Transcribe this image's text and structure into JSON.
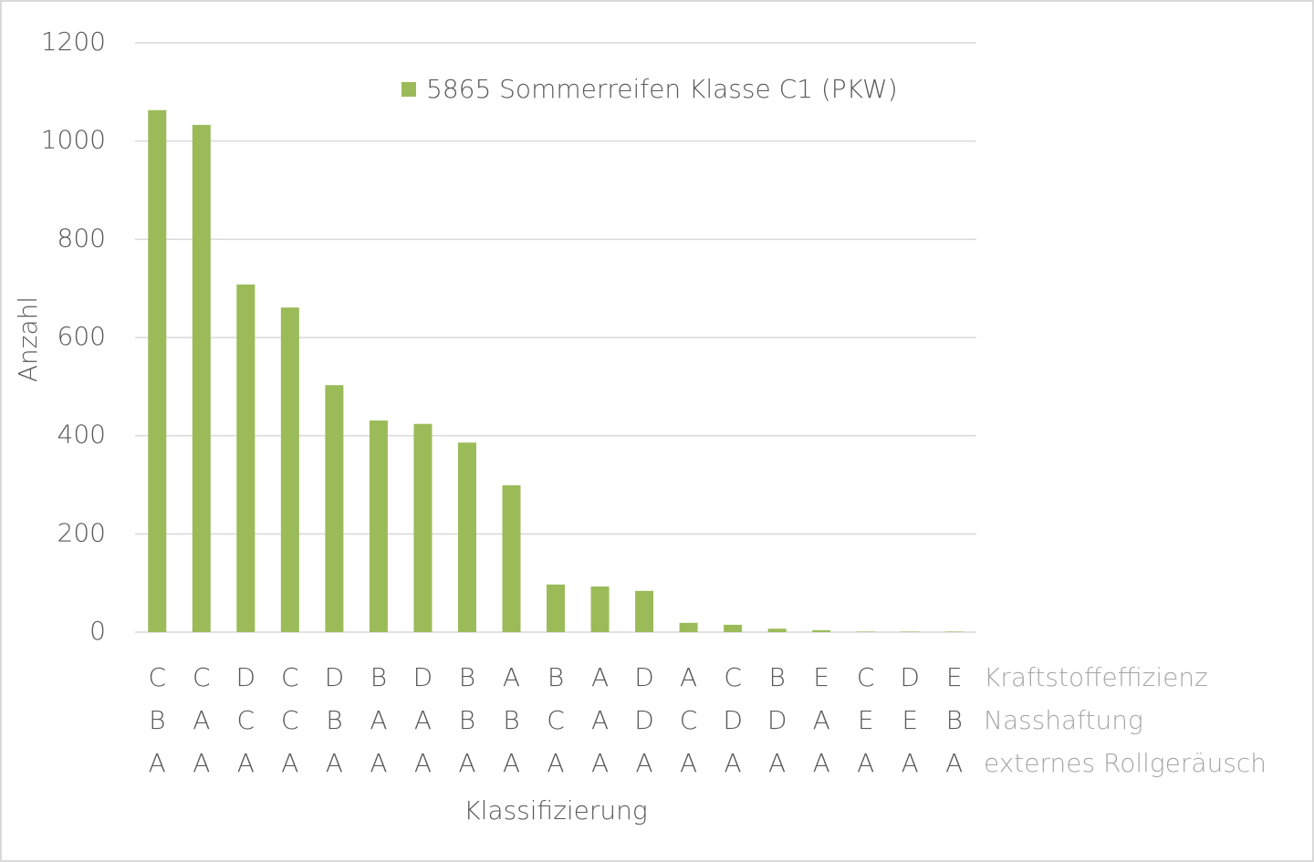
{
  "chart_data": {
    "type": "bar",
    "legend_label": "5865 Sommerreifen Klasse C1 (PKW)",
    "y_label": "Anzahl",
    "x_label": "Klassifizierung",
    "category_levels": [
      {
        "name": "Kraftstoffeffizienz",
        "labels": [
          "C",
          "C",
          "D",
          "C",
          "D",
          "B",
          "D",
          "B",
          "A",
          "B",
          "A",
          "D",
          "A",
          "C",
          "B",
          "E",
          "C",
          "D",
          "E"
        ]
      },
      {
        "name": "Nasshaftung",
        "labels": [
          "B",
          "A",
          "C",
          "C",
          "B",
          "A",
          "A",
          "B",
          "B",
          "C",
          "A",
          "D",
          "C",
          "D",
          "D",
          "A",
          "E",
          "E",
          "B"
        ]
      },
      {
        "name": "externes Rollgeräusch",
        "labels": [
          "A",
          "A",
          "A",
          "A",
          "A",
          "A",
          "A",
          "A",
          "A",
          "A",
          "A",
          "A",
          "A",
          "A",
          "A",
          "A",
          "A",
          "A",
          "A"
        ]
      }
    ],
    "values": [
      1063,
      1033,
      708,
      661,
      503,
      431,
      424,
      386,
      299,
      97,
      93,
      84,
      19,
      15,
      7,
      4,
      1,
      1,
      1
    ],
    "color": "#9bbb59",
    "ylim": [
      0,
      1200
    ],
    "yticks": [
      0,
      200,
      400,
      600,
      800,
      1000,
      1200
    ],
    "grid": true
  }
}
